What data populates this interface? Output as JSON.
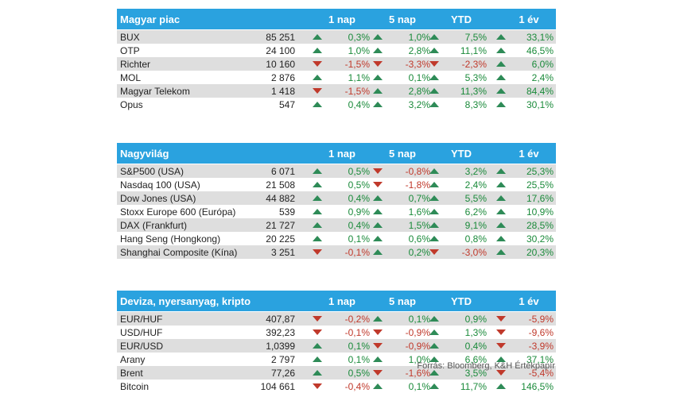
{
  "columns": [
    "1 nap",
    "5 nap",
    "YTD",
    "1 év"
  ],
  "colors": {
    "header_bg": "#2aa2df",
    "up": "#2e8b57",
    "down": "#c0392b",
    "alt_row": "#dedede"
  },
  "sections": [
    {
      "title": "Magyar piac",
      "rows": [
        {
          "name": "BUX",
          "value": "85 251",
          "cells": [
            {
              "dir": "up",
              "text": "0,3%"
            },
            {
              "dir": "up",
              "text": "1,0%"
            },
            {
              "dir": "up",
              "text": "7,5%"
            },
            {
              "dir": "up",
              "text": "33,1%"
            }
          ]
        },
        {
          "name": "OTP",
          "value": "24 100",
          "cells": [
            {
              "dir": "up",
              "text": "1,0%"
            },
            {
              "dir": "up",
              "text": "2,8%"
            },
            {
              "dir": "up",
              "text": "11,1%"
            },
            {
              "dir": "up",
              "text": "46,5%"
            }
          ]
        },
        {
          "name": "Richter",
          "value": "10 160",
          "cells": [
            {
              "dir": "down",
              "text": "-1,5%"
            },
            {
              "dir": "down",
              "text": "-3,3%"
            },
            {
              "dir": "down",
              "text": "-2,3%"
            },
            {
              "dir": "up",
              "text": "6,0%"
            }
          ]
        },
        {
          "name": "MOL",
          "value": "2 876",
          "cells": [
            {
              "dir": "up",
              "text": "1,1%"
            },
            {
              "dir": "up",
              "text": "0,1%"
            },
            {
              "dir": "up",
              "text": "5,3%"
            },
            {
              "dir": "up",
              "text": "2,4%"
            }
          ]
        },
        {
          "name": "Magyar Telekom",
          "value": "1 418",
          "cells": [
            {
              "dir": "down",
              "text": "-1,5%"
            },
            {
              "dir": "up",
              "text": "2,8%"
            },
            {
              "dir": "up",
              "text": "11,3%"
            },
            {
              "dir": "up",
              "text": "84,4%"
            }
          ]
        },
        {
          "name": "Opus",
          "value": "547",
          "cells": [
            {
              "dir": "up",
              "text": "0,4%"
            },
            {
              "dir": "up",
              "text": "3,2%"
            },
            {
              "dir": "up",
              "text": "8,3%"
            },
            {
              "dir": "up",
              "text": "30,1%"
            }
          ]
        }
      ]
    },
    {
      "title": "Nagyvilág",
      "rows": [
        {
          "name": "S&P500 (USA)",
          "value": "6 071",
          "cells": [
            {
              "dir": "up",
              "text": "0,5%"
            },
            {
              "dir": "down",
              "text": "-0,8%"
            },
            {
              "dir": "up",
              "text": "3,2%"
            },
            {
              "dir": "up",
              "text": "25,3%"
            }
          ]
        },
        {
          "name": "Nasdaq 100 (USA)",
          "value": "21 508",
          "cells": [
            {
              "dir": "up",
              "text": "0,5%"
            },
            {
              "dir": "down",
              "text": "-1,8%"
            },
            {
              "dir": "up",
              "text": "2,4%"
            },
            {
              "dir": "up",
              "text": "25,5%"
            }
          ]
        },
        {
          "name": "Dow Jones (USA)",
          "value": "44 882",
          "cells": [
            {
              "dir": "up",
              "text": "0,4%"
            },
            {
              "dir": "up",
              "text": "0,7%"
            },
            {
              "dir": "up",
              "text": "5,5%"
            },
            {
              "dir": "up",
              "text": "17,6%"
            }
          ]
        },
        {
          "name": "Stoxx Europe 600 (Európa)",
          "value": "539",
          "cells": [
            {
              "dir": "up",
              "text": "0,9%"
            },
            {
              "dir": "up",
              "text": "1,6%"
            },
            {
              "dir": "up",
              "text": "6,2%"
            },
            {
              "dir": "up",
              "text": "10,9%"
            }
          ]
        },
        {
          "name": "DAX (Frankfurt)",
          "value": "21 727",
          "cells": [
            {
              "dir": "up",
              "text": "0,4%"
            },
            {
              "dir": "up",
              "text": "1,5%"
            },
            {
              "dir": "up",
              "text": "9,1%"
            },
            {
              "dir": "up",
              "text": "28,5%"
            }
          ]
        },
        {
          "name": "Hang Seng (Hongkong)",
          "value": "20 225",
          "cells": [
            {
              "dir": "up",
              "text": "0,1%"
            },
            {
              "dir": "up",
              "text": "0,6%"
            },
            {
              "dir": "up",
              "text": "0,8%"
            },
            {
              "dir": "up",
              "text": "30,2%"
            }
          ]
        },
        {
          "name": "Shanghai Composite (Kína)",
          "value": "3 251",
          "cells": [
            {
              "dir": "down",
              "text": "-0,1%"
            },
            {
              "dir": "up",
              "text": "0,2%"
            },
            {
              "dir": "down",
              "text": "-3,0%"
            },
            {
              "dir": "up",
              "text": "20,3%"
            }
          ]
        }
      ]
    },
    {
      "title": "Deviza, nyersanyag, kripto",
      "rows": [
        {
          "name": "EUR/HUF",
          "value": "407,87",
          "cells": [
            {
              "dir": "down",
              "text": "-0,2%"
            },
            {
              "dir": "up",
              "text": "0,1%"
            },
            {
              "dir": "up",
              "text": "0,9%"
            },
            {
              "dir": "down",
              "text": "-5,9%"
            }
          ]
        },
        {
          "name": "USD/HUF",
          "value": "392,23",
          "cells": [
            {
              "dir": "down",
              "text": "-0,1%"
            },
            {
              "dir": "down",
              "text": "-0,9%"
            },
            {
              "dir": "up",
              "text": "1,3%"
            },
            {
              "dir": "down",
              "text": "-9,6%"
            }
          ]
        },
        {
          "name": "EUR/USD",
          "value": "1,0399",
          "cells": [
            {
              "dir": "up",
              "text": "0,1%"
            },
            {
              "dir": "down",
              "text": "-0,9%"
            },
            {
              "dir": "up",
              "text": "0,4%"
            },
            {
              "dir": "down",
              "text": "-3,9%"
            }
          ]
        },
        {
          "name": "Arany",
          "value": "2 797",
          "cells": [
            {
              "dir": "up",
              "text": "0,1%"
            },
            {
              "dir": "up",
              "text": "1,0%"
            },
            {
              "dir": "up",
              "text": "6,6%"
            },
            {
              "dir": "up",
              "text": "37,1%"
            }
          ]
        },
        {
          "name": "Brent",
          "value": "77,26",
          "cells": [
            {
              "dir": "up",
              "text": "0,5%"
            },
            {
              "dir": "down",
              "text": "-1,6%"
            },
            {
              "dir": "up",
              "text": "3,5%"
            },
            {
              "dir": "down",
              "text": "-5,4%"
            }
          ]
        },
        {
          "name": "Bitcoin",
          "value": "104 661",
          "cells": [
            {
              "dir": "down",
              "text": "-0,4%"
            },
            {
              "dir": "up",
              "text": "0,1%"
            },
            {
              "dir": "up",
              "text": "11,7%"
            },
            {
              "dir": "up",
              "text": "146,5%"
            }
          ]
        }
      ]
    }
  ],
  "source": "Forrás: Bloomberg, K&H Értékpapír"
}
